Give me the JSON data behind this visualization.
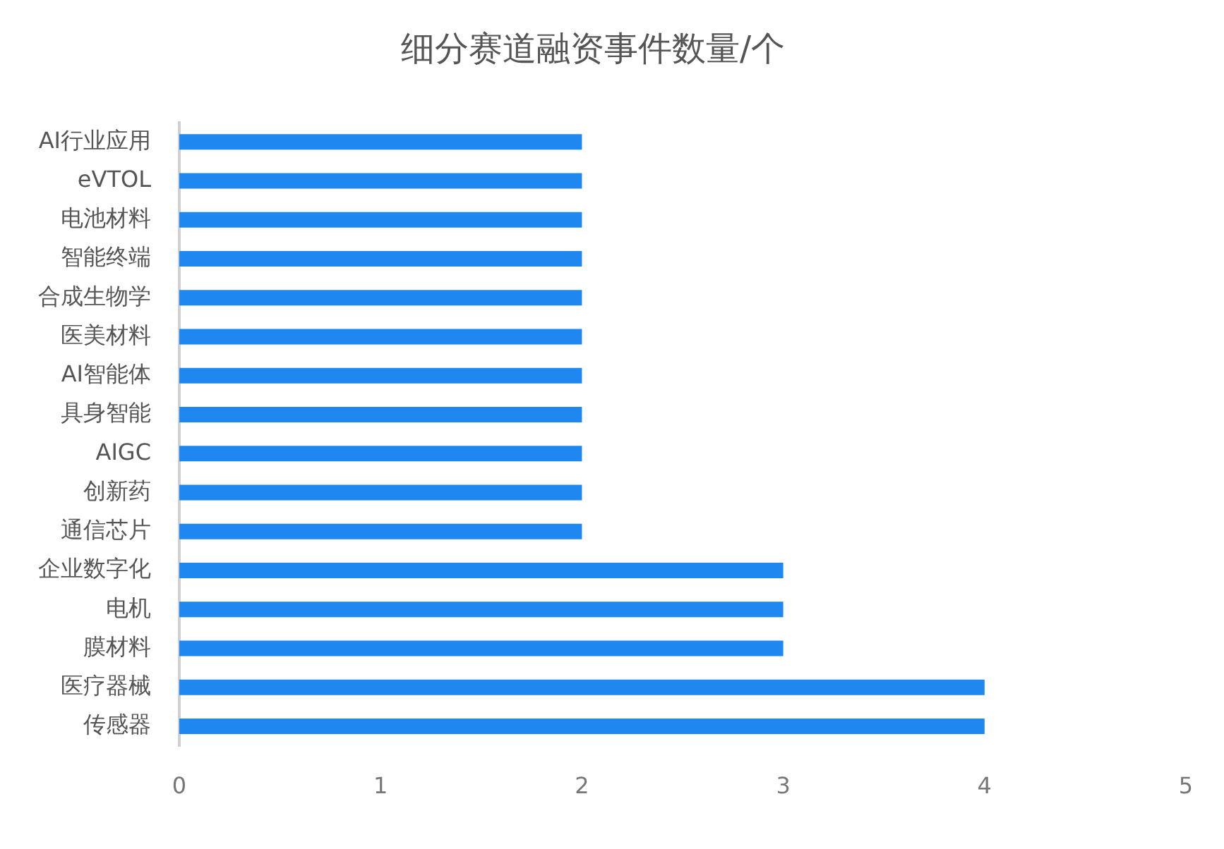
{
  "chart_data": {
    "type": "bar",
    "title": "细分赛道融资事件数量/个",
    "orientation": "horizontal",
    "categories": [
      "AI行业应用",
      "eVTOL",
      "电池材料",
      "智能终端",
      "合成生物学",
      "医美材料",
      "AI智能体",
      "具身智能",
      "AIGC",
      "创新药",
      "通信芯片",
      "企业数字化",
      "电机",
      "膜材料",
      "医疗器械",
      "传感器"
    ],
    "values": [
      2,
      2,
      2,
      2,
      2,
      2,
      2,
      2,
      2,
      2,
      2,
      3,
      3,
      3,
      4,
      4
    ],
    "color": "#1e88f0",
    "xlim": [
      0,
      5
    ],
    "xticks": [
      0,
      1,
      2,
      3,
      4,
      5
    ]
  }
}
